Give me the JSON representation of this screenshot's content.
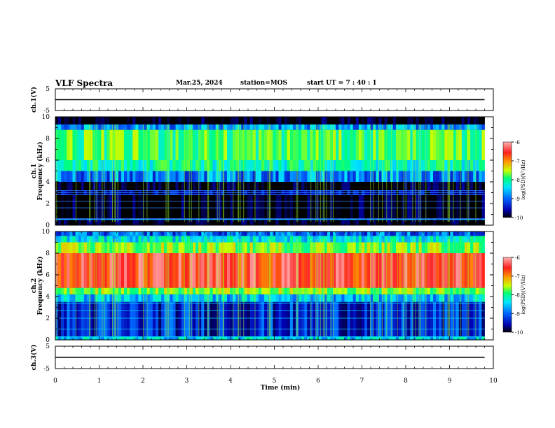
{
  "header": {
    "title": "VLF Spectra",
    "date": "Mar.25, 2024",
    "station": "station=MOS",
    "start": "start UT =  7 : 40 : 1"
  },
  "chart_data": [
    {
      "type": "line",
      "panel": "ch1-voltage",
      "ylabel": "ch.1(V)",
      "ylim": [
        -5,
        5
      ],
      "yticks": [
        5,
        -5
      ],
      "xlim": [
        0,
        10
      ],
      "x": [
        0,
        9.8
      ],
      "y": [
        0,
        0
      ]
    },
    {
      "type": "heatmap",
      "panel": "ch1-spectrogram",
      "ylabel": "ch.1\nFrequency (kHz)",
      "ylim": [
        0,
        10
      ],
      "yticks": [
        0,
        2,
        4,
        6,
        8,
        10
      ],
      "xlim": [
        0,
        10
      ],
      "x_data_end": 9.8,
      "colorbar": {
        "label": "log(PSD)(V²/Hz)",
        "range": [
          -10,
          -6
        ],
        "ticks": [
          "-6",
          "-7",
          "-8",
          "-9",
          "-10"
        ]
      },
      "bands": [
        {
          "f_low": 0.0,
          "f_high": 0.5,
          "level": -10.0
        },
        {
          "f_low": 0.5,
          "f_high": 0.6,
          "level": -8.6
        },
        {
          "f_low": 0.6,
          "f_high": 2.8,
          "level": -10.0
        },
        {
          "f_low": 2.8,
          "f_high": 3.2,
          "level": -9.6
        },
        {
          "f_low": 3.2,
          "f_high": 4.0,
          "level": -10.0
        },
        {
          "f_low": 4.0,
          "f_high": 5.0,
          "level": -8.9
        },
        {
          "f_low": 5.0,
          "f_high": 6.0,
          "level": -8.2
        },
        {
          "f_low": 6.0,
          "f_high": 8.8,
          "level": -7.9
        },
        {
          "f_low": 8.8,
          "f_high": 9.3,
          "level": -8.8
        },
        {
          "f_low": 9.3,
          "f_high": 10.0,
          "level": -10.0
        }
      ]
    },
    {
      "type": "heatmap",
      "panel": "ch2-spectrogram",
      "ylabel": "ch.2\nFrequency (kHz)",
      "ylim": [
        0,
        10
      ],
      "yticks": [
        0,
        2,
        4,
        6,
        8,
        10
      ],
      "xlim": [
        0,
        10
      ],
      "x_data_end": 9.8,
      "colorbar": {
        "label": "log(PSD)(V²/Hz)",
        "range": [
          -10,
          -6
        ],
        "ticks": [
          "-6",
          "-7",
          "-8",
          "-9",
          "-10"
        ]
      },
      "bands": [
        {
          "f_low": 0.0,
          "f_high": 0.3,
          "level": -8.5
        },
        {
          "f_low": 0.3,
          "f_high": 3.5,
          "level": -9.3
        },
        {
          "f_low": 3.5,
          "f_high": 4.2,
          "level": -8.6
        },
        {
          "f_low": 4.2,
          "f_high": 4.8,
          "level": -7.7
        },
        {
          "f_low": 4.8,
          "f_high": 8.0,
          "level": -6.5
        },
        {
          "f_low": 8.0,
          "f_high": 9.0,
          "level": -7.7
        },
        {
          "f_low": 9.0,
          "f_high": 9.6,
          "level": -8.4
        },
        {
          "f_low": 9.6,
          "f_high": 10.0,
          "level": -9.0
        }
      ]
    },
    {
      "type": "line",
      "panel": "ch3-voltage",
      "ylabel": "ch.3(V)",
      "ylim": [
        -5,
        5
      ],
      "yticks": [
        5,
        -5
      ],
      "xlim": [
        0,
        10
      ],
      "xlabel": "Time (min)",
      "xticks": [
        0,
        1,
        2,
        3,
        4,
        5,
        6,
        7,
        8,
        9,
        10
      ],
      "x": [
        0,
        9.8
      ],
      "y": [
        0,
        0
      ]
    }
  ],
  "colors": {
    "scale": [
      "#000000",
      "#0000b0",
      "#0064ff",
      "#00e6ff",
      "#00ff78",
      "#c8ff00",
      "#ff9600",
      "#ff2020",
      "#ffb0b0"
    ],
    "noise": "#000000",
    "axis": "#000000"
  }
}
